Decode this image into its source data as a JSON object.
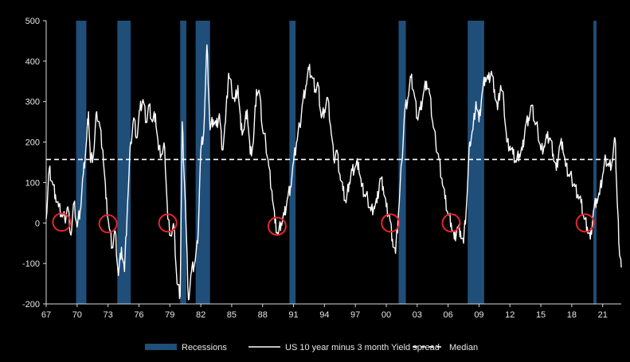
{
  "chart_data": {
    "type": "line",
    "title": "",
    "xlabel": "",
    "ylabel": "",
    "xlim": [
      1967,
      2022.8
    ],
    "ylim": [
      -200,
      500
    ],
    "yticks": [
      -200,
      -100,
      0,
      100,
      200,
      300,
      400,
      500
    ],
    "xticks": [
      {
        "year": 1967,
        "label": "67"
      },
      {
        "year": 1970,
        "label": "70"
      },
      {
        "year": 1973,
        "label": "73"
      },
      {
        "year": 1976,
        "label": "76"
      },
      {
        "year": 1979,
        "label": "79"
      },
      {
        "year": 1982,
        "label": "82"
      },
      {
        "year": 1985,
        "label": "85"
      },
      {
        "year": 1988,
        "label": "88"
      },
      {
        "year": 1991,
        "label": "91"
      },
      {
        "year": 1994,
        "label": "94"
      },
      {
        "year": 1997,
        "label": "97"
      },
      {
        "year": 2000,
        "label": "00"
      },
      {
        "year": 2003,
        "label": "03"
      },
      {
        "year": 2006,
        "label": "06"
      },
      {
        "year": 2009,
        "label": "09"
      },
      {
        "year": 2012,
        "label": "12"
      },
      {
        "year": 2015,
        "label": "15"
      },
      {
        "year": 2018,
        "label": "18"
      },
      {
        "year": 2021,
        "label": "21"
      }
    ],
    "recessions": [
      {
        "start": 1969.9,
        "end": 1970.9
      },
      {
        "start": 1973.9,
        "end": 1975.2
      },
      {
        "start": 1980.0,
        "end": 1980.6
      },
      {
        "start": 1981.5,
        "end": 1982.9
      },
      {
        "start": 1990.6,
        "end": 1991.2
      },
      {
        "start": 2001.2,
        "end": 2001.9
      },
      {
        "start": 2007.9,
        "end": 2009.5
      },
      {
        "start": 2020.1,
        "end": 2020.4
      }
    ],
    "median": 157,
    "inversion_markers": [
      {
        "year": 1968.5,
        "value": 2
      },
      {
        "year": 1973.0,
        "value": -2
      },
      {
        "year": 1978.8,
        "value": 0
      },
      {
        "year": 1989.4,
        "value": -8
      },
      {
        "year": 2000.4,
        "value": 0
      },
      {
        "year": 2006.3,
        "value": 0
      },
      {
        "year": 2019.3,
        "value": 0
      }
    ],
    "series": [
      {
        "name": "US 10 year minus 3 month Yield spread",
        "color": "#ffffff",
        "points": [
          [
            1967.0,
            10
          ],
          [
            1967.3,
            135
          ],
          [
            1967.6,
            100
          ],
          [
            1967.9,
            70
          ],
          [
            1968.2,
            40
          ],
          [
            1968.5,
            20
          ],
          [
            1968.8,
            10
          ],
          [
            1969.1,
            40
          ],
          [
            1969.4,
            -30
          ],
          [
            1969.7,
            50
          ],
          [
            1970.0,
            -10
          ],
          [
            1970.3,
            30
          ],
          [
            1970.6,
            120
          ],
          [
            1970.9,
            200
          ],
          [
            1971.1,
            275
          ],
          [
            1971.3,
            150
          ],
          [
            1971.6,
            170
          ],
          [
            1971.9,
            275
          ],
          [
            1972.2,
            240
          ],
          [
            1972.5,
            180
          ],
          [
            1972.8,
            60
          ],
          [
            1973.1,
            -10
          ],
          [
            1973.4,
            -60
          ],
          [
            1973.7,
            -20
          ],
          [
            1974.0,
            -130
          ],
          [
            1974.3,
            -60
          ],
          [
            1974.6,
            -120
          ],
          [
            1974.9,
            50
          ],
          [
            1975.2,
            200
          ],
          [
            1975.5,
            260
          ],
          [
            1975.8,
            210
          ],
          [
            1976.1,
            280
          ],
          [
            1976.4,
            305
          ],
          [
            1976.7,
            250
          ],
          [
            1977.0,
            290
          ],
          [
            1977.3,
            250
          ],
          [
            1977.6,
            270
          ],
          [
            1977.9,
            180
          ],
          [
            1978.2,
            170
          ],
          [
            1978.5,
            185
          ],
          [
            1978.8,
            10
          ],
          [
            1979.1,
            -30
          ],
          [
            1979.4,
            -10
          ],
          [
            1979.7,
            -150
          ],
          [
            1980.0,
            -180
          ],
          [
            1980.2,
            250
          ],
          [
            1980.5,
            50
          ],
          [
            1980.8,
            -190
          ],
          [
            1981.1,
            -120
          ],
          [
            1981.4,
            -100
          ],
          [
            1981.7,
            -50
          ],
          [
            1982.0,
            180
          ],
          [
            1982.3,
            230
          ],
          [
            1982.6,
            440
          ],
          [
            1982.9,
            230
          ],
          [
            1983.2,
            255
          ],
          [
            1983.5,
            240
          ],
          [
            1983.8,
            270
          ],
          [
            1984.1,
            180
          ],
          [
            1984.4,
            250
          ],
          [
            1984.7,
            370
          ],
          [
            1985.0,
            330
          ],
          [
            1985.3,
            300
          ],
          [
            1985.6,
            340
          ],
          [
            1985.9,
            230
          ],
          [
            1986.2,
            230
          ],
          [
            1986.5,
            280
          ],
          [
            1986.8,
            170
          ],
          [
            1987.1,
            200
          ],
          [
            1987.4,
            330
          ],
          [
            1987.7,
            320
          ],
          [
            1988.0,
            230
          ],
          [
            1988.3,
            200
          ],
          [
            1988.6,
            140
          ],
          [
            1988.9,
            80
          ],
          [
            1989.2,
            0
          ],
          [
            1989.5,
            -30
          ],
          [
            1989.8,
            0
          ],
          [
            1990.1,
            20
          ],
          [
            1990.4,
            60
          ],
          [
            1990.7,
            90
          ],
          [
            1991.0,
            150
          ],
          [
            1991.3,
            200
          ],
          [
            1991.6,
            240
          ],
          [
            1991.9,
            300
          ],
          [
            1992.2,
            340
          ],
          [
            1992.5,
            380
          ],
          [
            1992.8,
            360
          ],
          [
            1993.1,
            330
          ],
          [
            1993.4,
            340
          ],
          [
            1993.7,
            260
          ],
          [
            1994.0,
            280
          ],
          [
            1994.3,
            310
          ],
          [
            1994.6,
            240
          ],
          [
            1994.9,
            160
          ],
          [
            1995.2,
            180
          ],
          [
            1995.5,
            120
          ],
          [
            1995.8,
            80
          ],
          [
            1996.1,
            50
          ],
          [
            1996.4,
            100
          ],
          [
            1996.7,
            130
          ],
          [
            1997.0,
            140
          ],
          [
            1997.3,
            150
          ],
          [
            1997.6,
            90
          ],
          [
            1997.9,
            70
          ],
          [
            1998.2,
            60
          ],
          [
            1998.5,
            30
          ],
          [
            1998.8,
            40
          ],
          [
            1999.1,
            50
          ],
          [
            1999.4,
            110
          ],
          [
            1999.7,
            90
          ],
          [
            2000.0,
            40
          ],
          [
            2000.3,
            20
          ],
          [
            2000.6,
            -40
          ],
          [
            2000.9,
            -75
          ],
          [
            2001.2,
            30
          ],
          [
            2001.5,
            150
          ],
          [
            2001.8,
            280
          ],
          [
            2002.1,
            310
          ],
          [
            2002.4,
            360
          ],
          [
            2002.7,
            320
          ],
          [
            2003.0,
            260
          ],
          [
            2003.3,
            280
          ],
          [
            2003.6,
            320
          ],
          [
            2003.9,
            350
          ],
          [
            2004.2,
            320
          ],
          [
            2004.5,
            250
          ],
          [
            2004.8,
            200
          ],
          [
            2005.1,
            160
          ],
          [
            2005.4,
            110
          ],
          [
            2005.7,
            60
          ],
          [
            2006.0,
            20
          ],
          [
            2006.3,
            0
          ],
          [
            2006.6,
            -40
          ],
          [
            2006.9,
            -10
          ],
          [
            2007.2,
            -20
          ],
          [
            2007.5,
            -50
          ],
          [
            2007.8,
            50
          ],
          [
            2008.1,
            200
          ],
          [
            2008.4,
            230
          ],
          [
            2008.7,
            300
          ],
          [
            2009.0,
            250
          ],
          [
            2009.3,
            320
          ],
          [
            2009.6,
            360
          ],
          [
            2009.9,
            355
          ],
          [
            2010.2,
            375
          ],
          [
            2010.5,
            330
          ],
          [
            2010.8,
            280
          ],
          [
            2011.1,
            340
          ],
          [
            2011.4,
            300
          ],
          [
            2011.7,
            200
          ],
          [
            2012.0,
            190
          ],
          [
            2012.3,
            170
          ],
          [
            2012.6,
            150
          ],
          [
            2012.9,
            170
          ],
          [
            2013.2,
            180
          ],
          [
            2013.5,
            240
          ],
          [
            2013.8,
            260
          ],
          [
            2014.1,
            290
          ],
          [
            2014.4,
            250
          ],
          [
            2014.7,
            230
          ],
          [
            2015.0,
            180
          ],
          [
            2015.3,
            190
          ],
          [
            2015.6,
            210
          ],
          [
            2015.9,
            210
          ],
          [
            2016.2,
            170
          ],
          [
            2016.5,
            130
          ],
          [
            2016.8,
            190
          ],
          [
            2017.1,
            200
          ],
          [
            2017.4,
            140
          ],
          [
            2017.7,
            120
          ],
          [
            2018.0,
            110
          ],
          [
            2018.3,
            90
          ],
          [
            2018.6,
            70
          ],
          [
            2018.9,
            50
          ],
          [
            2019.2,
            10
          ],
          [
            2019.5,
            -10
          ],
          [
            2019.8,
            -40
          ],
          [
            2020.1,
            30
          ],
          [
            2020.4,
            60
          ],
          [
            2020.7,
            70
          ],
          [
            2021.0,
            120
          ],
          [
            2021.3,
            160
          ],
          [
            2021.6,
            140
          ],
          [
            2021.9,
            150
          ],
          [
            2022.2,
            210
          ],
          [
            2022.4,
            60
          ],
          [
            2022.6,
            -60
          ],
          [
            2022.8,
            -110
          ]
        ]
      }
    ],
    "legend": {
      "position": "bottom",
      "items": [
        {
          "kind": "bar",
          "label": "Recessions",
          "color": "#1f4e79"
        },
        {
          "kind": "line",
          "label": "US 10 year minus 3 month Yield spread",
          "color": "#ffffff"
        },
        {
          "kind": "dashed",
          "label": "Median",
          "color": "#ffffff"
        }
      ]
    },
    "colors": {
      "background": "#000000",
      "recession": "#1f4e79",
      "line": "#ffffff",
      "median": "#ffffff",
      "marker": "#e8242c",
      "axis": "#d9d9d9"
    }
  }
}
